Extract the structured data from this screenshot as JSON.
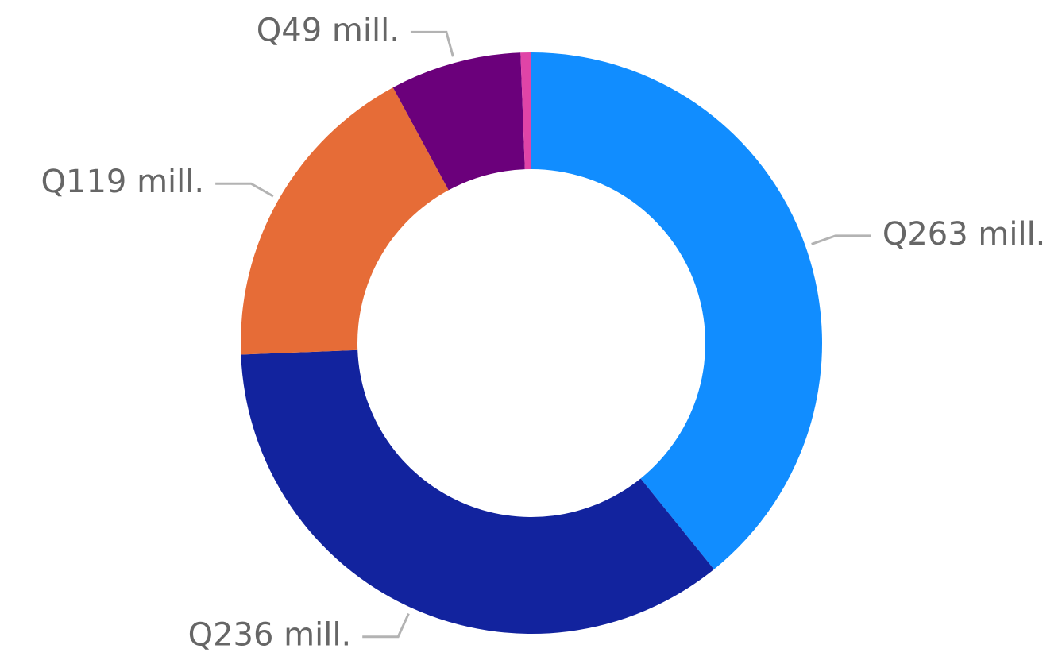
{
  "chart_data": {
    "type": "donut",
    "values": [
      263,
      236,
      119,
      49,
      4
    ],
    "value_labels": [
      "Q263 mill.",
      "Q236 mill.",
      "Q119 mill.",
      "Q49 mill.",
      null
    ],
    "colors": [
      "#118dff",
      "#12239e",
      "#e66c37",
      "#6b007b",
      "#e044a7"
    ]
  }
}
